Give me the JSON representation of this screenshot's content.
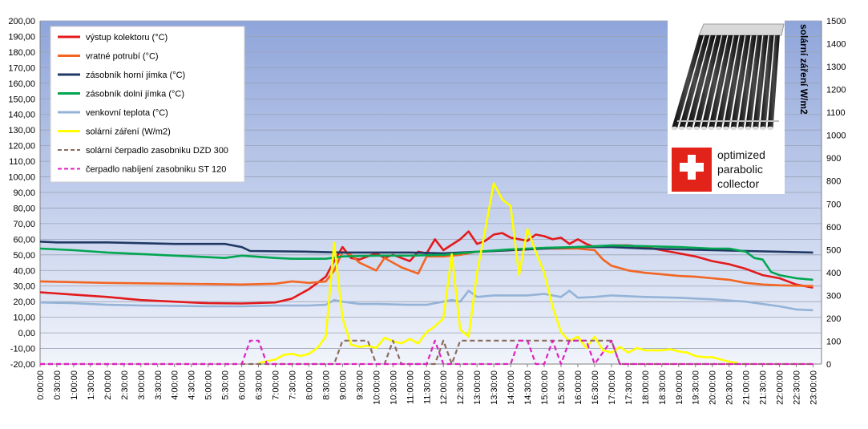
{
  "chart_data": {
    "type": "line",
    "title": "",
    "xlabel": "",
    "ylabel": "",
    "y2label": "solární záření W/m2",
    "ylim": [
      -20,
      200
    ],
    "y2lim": [
      0,
      1500
    ],
    "y_ticks": [
      "200,00",
      "190,00",
      "180,00",
      "170,00",
      "160,00",
      "150,00",
      "140,00",
      "130,00",
      "120,00",
      "110,00",
      "100,00",
      "90,00",
      "80,00",
      "70,00",
      "60,00",
      "50,00",
      "40,00",
      "30,00",
      "20,00",
      "10,00",
      "0,00",
      "-10,00",
      "-20,00"
    ],
    "y2_ticks": [
      "1500",
      "1400",
      "1300",
      "1200",
      "1100",
      "1000",
      "900",
      "800",
      "700",
      "600",
      "500",
      "400",
      "300",
      "200",
      "100",
      "0"
    ],
    "x_ticks": [
      "0:00:00",
      "0:30:00",
      "1:00:00",
      "1:30:00",
      "2:00:00",
      "2:30:00",
      "3:00:00",
      "3:30:00",
      "4:00:00",
      "4:30:00",
      "5:00:00",
      "5:30:00",
      "6:00:00",
      "6:30:00",
      "7:00:00",
      "7:30:00",
      "8:00:00",
      "8:30:00",
      "9:00:00",
      "9:30:00",
      "10:00:00",
      "10:30:00",
      "11:00:00",
      "11:30:00",
      "12:00:00",
      "12:30:00",
      "13:00:00",
      "13:30:00",
      "14:00:00",
      "14:30:00",
      "15:00:00",
      "15:30:00",
      "16:00:00",
      "16:30:00",
      "17:00:00",
      "17:30:00",
      "18:00:00",
      "18:30:00",
      "19:00:00",
      "19:30:00",
      "20:00:00",
      "20:30:00",
      "21:00:00",
      "21:30:00",
      "22:00:00",
      "22:30:00",
      "23:00:00"
    ],
    "grid": true,
    "legend_position": "top-left",
    "series": [
      {
        "name": "výstup kolektoru (°C)",
        "color": "#e31a1c",
        "axis": "left",
        "dash": "solid",
        "points": [
          [
            0,
            26
          ],
          [
            1,
            24.5
          ],
          [
            2,
            23
          ],
          [
            3,
            21
          ],
          [
            4,
            20
          ],
          [
            5,
            19
          ],
          [
            6,
            18.8
          ],
          [
            7,
            19.5
          ],
          [
            7.5,
            22
          ],
          [
            8,
            28
          ],
          [
            8.5,
            36
          ],
          [
            8.75,
            46
          ],
          [
            9,
            55
          ],
          [
            9.25,
            48
          ],
          [
            9.5,
            47
          ],
          [
            10,
            51
          ],
          [
            10.25,
            48
          ],
          [
            10.5,
            50
          ],
          [
            11,
            46
          ],
          [
            11.25,
            52
          ],
          [
            11.5,
            51
          ],
          [
            11.75,
            60
          ],
          [
            12,
            53
          ],
          [
            12.5,
            60
          ],
          [
            12.75,
            65
          ],
          [
            13,
            57
          ],
          [
            13.25,
            59
          ],
          [
            13.5,
            63
          ],
          [
            13.75,
            64
          ],
          [
            14,
            61
          ],
          [
            14.5,
            59
          ],
          [
            14.75,
            63
          ],
          [
            15,
            62
          ],
          [
            15.25,
            60
          ],
          [
            15.5,
            61
          ],
          [
            15.75,
            57
          ],
          [
            16,
            60
          ],
          [
            16.25,
            57
          ],
          [
            16.5,
            55
          ],
          [
            17,
            56
          ],
          [
            17.5,
            56
          ],
          [
            18,
            55
          ],
          [
            18.5,
            53
          ],
          [
            19,
            51
          ],
          [
            19.5,
            49
          ],
          [
            20,
            46
          ],
          [
            20.5,
            44
          ],
          [
            21,
            41
          ],
          [
            21.5,
            37
          ],
          [
            22,
            35
          ],
          [
            22.5,
            31
          ],
          [
            23,
            29
          ]
        ]
      },
      {
        "name": "vratné potrubí (°C)",
        "color": "#f26522",
        "axis": "left",
        "dash": "solid",
        "points": [
          [
            0,
            33
          ],
          [
            2,
            32
          ],
          [
            4,
            31.5
          ],
          [
            6,
            31
          ],
          [
            7,
            31.5
          ],
          [
            7.5,
            33
          ],
          [
            8,
            32
          ],
          [
            8.5,
            33
          ],
          [
            8.75,
            40
          ],
          [
            9,
            52
          ],
          [
            9.25,
            50
          ],
          [
            9.5,
            45
          ],
          [
            10,
            40
          ],
          [
            10.25,
            48
          ],
          [
            10.75,
            42
          ],
          [
            11.25,
            38
          ],
          [
            11.5,
            49
          ],
          [
            12,
            49
          ],
          [
            12.5,
            50
          ],
          [
            13,
            52
          ],
          [
            14,
            53
          ],
          [
            15,
            54
          ],
          [
            16,
            54
          ],
          [
            16.5,
            53
          ],
          [
            16.75,
            47
          ],
          [
            17,
            43
          ],
          [
            17.5,
            40
          ],
          [
            18,
            38.5
          ],
          [
            18.5,
            37.5
          ],
          [
            19,
            36.5
          ],
          [
            19.5,
            36
          ],
          [
            20,
            35
          ],
          [
            20.5,
            34
          ],
          [
            21,
            32
          ],
          [
            21.5,
            31
          ],
          [
            22,
            30.5
          ],
          [
            23,
            30
          ]
        ]
      },
      {
        "name": "zásobník horní jímka (°C)",
        "color": "#1f3864",
        "axis": "left",
        "dash": "solid",
        "points": [
          [
            0,
            58.5
          ],
          [
            0.5,
            58
          ],
          [
            2,
            58
          ],
          [
            4,
            57
          ],
          [
            5.5,
            57
          ],
          [
            6,
            55
          ],
          [
            6.25,
            52.5
          ],
          [
            8,
            52
          ],
          [
            9,
            51.5
          ],
          [
            10,
            51.5
          ],
          [
            11,
            51.5
          ],
          [
            12,
            51
          ],
          [
            13,
            52
          ],
          [
            14,
            53
          ],
          [
            15,
            54
          ],
          [
            16,
            55
          ],
          [
            17,
            55
          ],
          [
            18,
            54
          ],
          [
            19,
            53.5
          ],
          [
            20,
            53
          ],
          [
            21,
            52.5
          ],
          [
            22,
            52
          ],
          [
            23,
            51.5
          ]
        ]
      },
      {
        "name": "zásobník dolní jímka  (°C)",
        "color": "#00a650",
        "axis": "left",
        "dash": "solid",
        "points": [
          [
            0,
            54
          ],
          [
            1,
            53
          ],
          [
            2,
            51.5
          ],
          [
            3,
            50.5
          ],
          [
            4,
            49.5
          ],
          [
            5,
            48.5
          ],
          [
            5.5,
            48
          ],
          [
            6,
            49.5
          ],
          [
            7,
            48
          ],
          [
            7.5,
            47.5
          ],
          [
            8.5,
            47.5
          ],
          [
            9,
            49
          ],
          [
            10,
            49.5
          ],
          [
            11,
            49.5
          ],
          [
            12,
            50
          ],
          [
            13,
            52
          ],
          [
            14,
            53.5
          ],
          [
            15,
            54.5
          ],
          [
            16,
            55
          ],
          [
            17,
            56
          ],
          [
            18,
            55.5
          ],
          [
            19,
            55
          ],
          [
            20,
            54
          ],
          [
            20.5,
            54
          ],
          [
            21,
            52
          ],
          [
            21.25,
            48
          ],
          [
            21.5,
            47
          ],
          [
            21.75,
            39
          ],
          [
            22,
            37
          ],
          [
            22.5,
            35
          ],
          [
            23,
            34
          ]
        ]
      },
      {
        "name": "venkovní teplota (°C)",
        "color": "#95b3d7",
        "axis": "left",
        "dash": "solid",
        "points": [
          [
            0,
            19.5
          ],
          [
            1,
            19
          ],
          [
            2,
            18
          ],
          [
            3,
            17.5
          ],
          [
            4,
            17.3
          ],
          [
            5,
            17
          ],
          [
            6,
            17
          ],
          [
            7,
            17.5
          ],
          [
            8,
            17.5
          ],
          [
            8.5,
            18
          ],
          [
            8.75,
            21
          ],
          [
            9,
            20
          ],
          [
            9.5,
            18.5
          ],
          [
            10,
            18.5
          ],
          [
            11,
            18
          ],
          [
            11.5,
            18
          ],
          [
            12,
            20
          ],
          [
            12.25,
            21
          ],
          [
            12.5,
            20
          ],
          [
            12.75,
            27
          ],
          [
            13,
            23
          ],
          [
            13.5,
            24
          ],
          [
            14,
            24
          ],
          [
            14.5,
            24
          ],
          [
            15,
            25
          ],
          [
            15.5,
            23
          ],
          [
            15.75,
            27
          ],
          [
            16,
            22.5
          ],
          [
            16.5,
            23
          ],
          [
            17,
            24
          ],
          [
            17.5,
            23.5
          ],
          [
            18,
            23
          ],
          [
            19,
            22.5
          ],
          [
            20,
            21.5
          ],
          [
            21,
            20
          ],
          [
            22,
            17
          ],
          [
            22.5,
            15
          ],
          [
            23,
            14.5
          ]
        ]
      },
      {
        "name": "solární záření (W/m2)",
        "color": "#ffff00",
        "axis": "right",
        "dash": "solid",
        "points": [
          [
            6.5,
            5
          ],
          [
            7,
            20
          ],
          [
            7.25,
            40
          ],
          [
            7.5,
            45
          ],
          [
            7.75,
            35
          ],
          [
            8,
            45
          ],
          [
            8.25,
            70
          ],
          [
            8.5,
            120
          ],
          [
            8.75,
            530
          ],
          [
            9,
            200
          ],
          [
            9.25,
            85
          ],
          [
            9.5,
            75
          ],
          [
            9.75,
            80
          ],
          [
            10,
            70
          ],
          [
            10.25,
            115
          ],
          [
            10.5,
            100
          ],
          [
            10.75,
            90
          ],
          [
            11,
            110
          ],
          [
            11.25,
            90
          ],
          [
            11.5,
            140
          ],
          [
            11.75,
            165
          ],
          [
            12,
            200
          ],
          [
            12.25,
            480
          ],
          [
            12.5,
            150
          ],
          [
            12.75,
            120
          ],
          [
            13,
            400
          ],
          [
            13.25,
            590
          ],
          [
            13.5,
            790
          ],
          [
            13.75,
            720
          ],
          [
            14,
            690
          ],
          [
            14.25,
            390
          ],
          [
            14.5,
            590
          ],
          [
            14.75,
            490
          ],
          [
            15,
            400
          ],
          [
            15.25,
            250
          ],
          [
            15.5,
            140
          ],
          [
            15.75,
            100
          ],
          [
            16,
            120
          ],
          [
            16.25,
            70
          ],
          [
            16.5,
            120
          ],
          [
            16.75,
            60
          ],
          [
            17,
            50
          ],
          [
            17.25,
            75
          ],
          [
            17.5,
            50
          ],
          [
            17.75,
            70
          ],
          [
            18,
            60
          ],
          [
            18.25,
            60
          ],
          [
            18.5,
            60
          ],
          [
            18.75,
            65
          ],
          [
            19,
            55
          ],
          [
            19.25,
            50
          ],
          [
            19.5,
            35
          ],
          [
            19.75,
            30
          ],
          [
            20,
            30
          ],
          [
            20.25,
            20
          ],
          [
            20.5,
            10
          ],
          [
            20.75,
            5
          ]
        ]
      },
      {
        "name": "solární čerpadlo zasobniku  DZD 300",
        "color": "#8c6b5e",
        "axis": "left",
        "dash": "dashed",
        "points": [
          [
            0,
            -20
          ],
          [
            8.75,
            -20
          ],
          [
            9,
            -5
          ],
          [
            9.75,
            -5
          ],
          [
            10,
            -20
          ],
          [
            10.25,
            -20
          ],
          [
            10.5,
            -5
          ],
          [
            10.75,
            -20
          ],
          [
            11.75,
            -20
          ],
          [
            12,
            -5
          ],
          [
            12.25,
            -20
          ],
          [
            12.5,
            -5
          ],
          [
            17,
            -5
          ],
          [
            17.25,
            -20
          ],
          [
            23,
            -20
          ]
        ]
      },
      {
        "name": "čerpadlo nabíjení  zasobniku ST 120",
        "color": "#e020c0",
        "axis": "left",
        "dash": "dashed",
        "points": [
          [
            0,
            -20
          ],
          [
            6,
            -20
          ],
          [
            6.25,
            -5
          ],
          [
            6.5,
            -5
          ],
          [
            6.75,
            -20
          ],
          [
            11.5,
            -20
          ],
          [
            11.75,
            -5
          ],
          [
            12,
            -20
          ],
          [
            14,
            -20
          ],
          [
            14.25,
            -5
          ],
          [
            14.5,
            -5
          ],
          [
            14.75,
            -20
          ],
          [
            15,
            -20
          ],
          [
            15.25,
            -5
          ],
          [
            15.5,
            -20
          ],
          [
            15.75,
            -5
          ],
          [
            16.25,
            -5
          ],
          [
            16.5,
            -20
          ],
          [
            17,
            -5
          ],
          [
            17.25,
            -20
          ],
          [
            23,
            -20
          ]
        ]
      }
    ]
  },
  "inset": {
    "badge_text": [
      "optimized",
      "parabolic",
      "collector"
    ],
    "badge_color": "#e2231a",
    "tube_count": 14
  }
}
